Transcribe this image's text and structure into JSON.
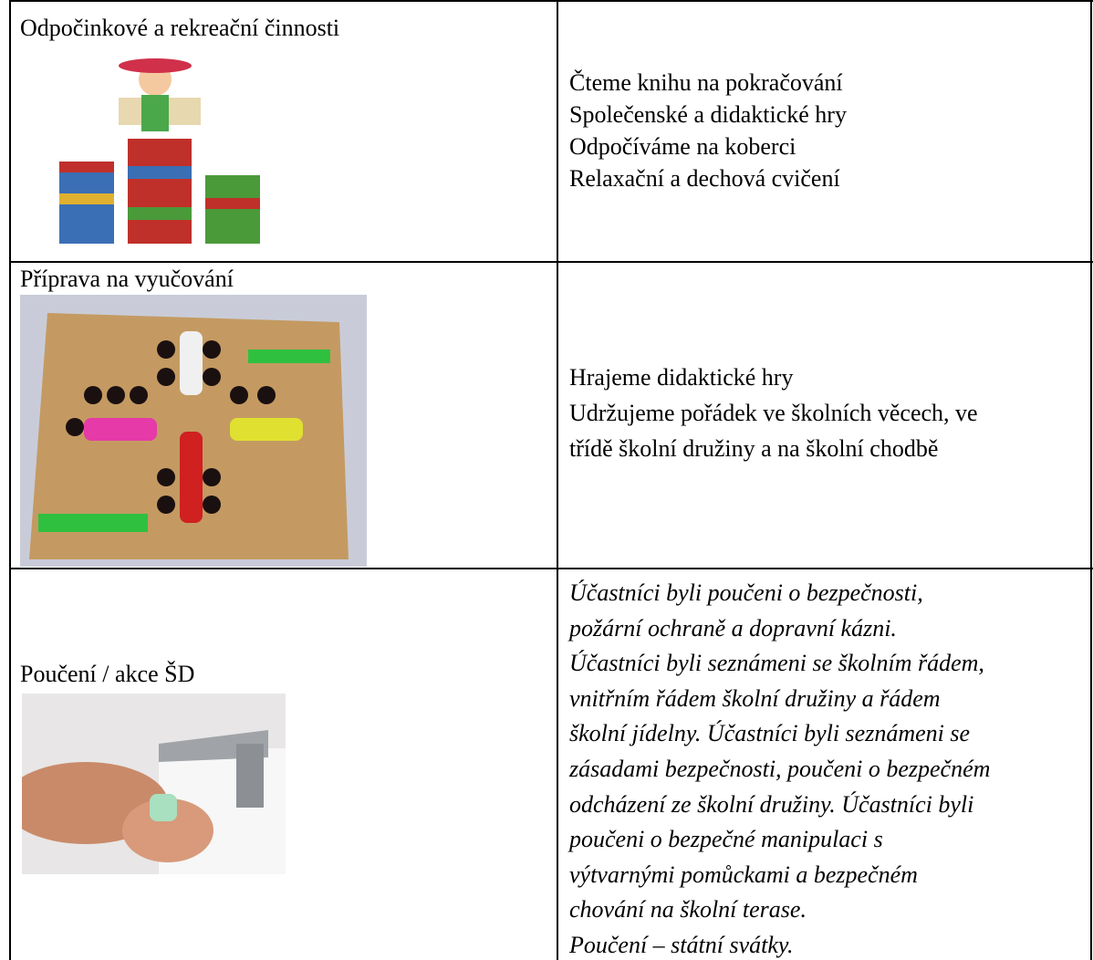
{
  "table": {
    "rows": [
      {
        "label": "Odpočinkové a rekreační činnosti",
        "items": [
          "Čteme knihu na pokračování",
          "Společenské a didaktické hry",
          "Odpočíváme na koberci",
          "Relaxační a dechová cvičení"
        ]
      },
      {
        "label": "Příprava na vyučování",
        "items": [
          "Hrajeme didaktické hry",
          "Udržujeme pořádek ve školních věcech, ve",
          "třídě školní družiny a na školní chodbě"
        ]
      },
      {
        "label": "Poučení /  akce ŠD",
        "items": [
          "Účastníci byli poučeni o bezpečnosti,",
          "požární ochraně a dopravní kázni.",
          "Účastníci byli seznámeni se školním řádem,",
          "vnitřním řádem školní družiny a řádem",
          "školní jídelny. Účastníci byli seznámeni se",
          "zásadami bezpečnosti, poučeni o bezpečném",
          "odcházení ze školní družiny. Účastníci byli",
          "poučeni o bezpečné manipulaci s",
          "výtvarnými pomůckami a bezpečném",
          "chování na školní terase.",
          "Poučení – státní svátky."
        ]
      }
    ]
  }
}
